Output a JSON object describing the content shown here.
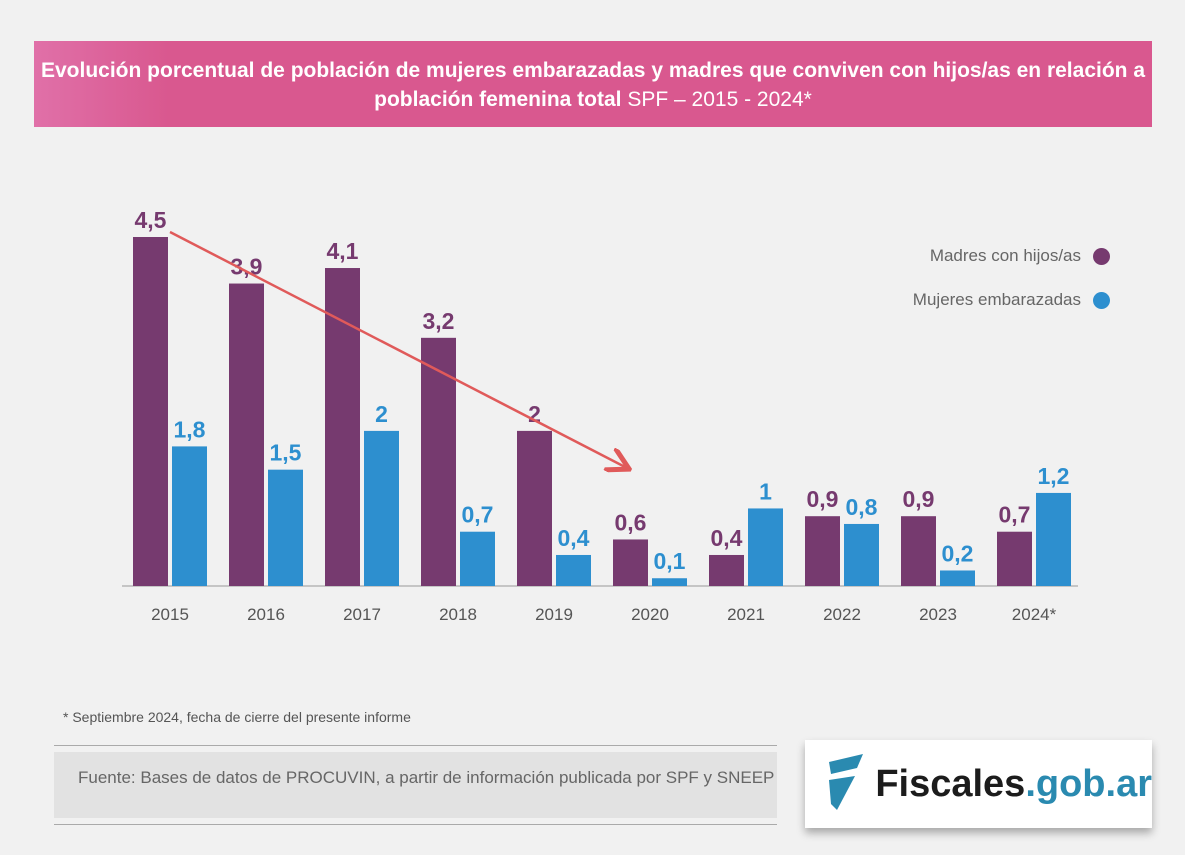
{
  "title": {
    "bold": "Evolución porcentual de población de mujeres embarazadas y madres que conviven con hijos/as en relación a población femenina total",
    "light": "SPF – 2015 - 2024*"
  },
  "chart_data": {
    "type": "bar",
    "categories": [
      "2015",
      "2016",
      "2017",
      "2018",
      "2019",
      "2020",
      "2021",
      "2022",
      "2023",
      "2024*"
    ],
    "series": [
      {
        "name": "Madres con hijos/as",
        "color": "#763a6f",
        "values": [
          4.5,
          3.9,
          4.1,
          3.2,
          2,
          0.6,
          0.4,
          0.9,
          0.9,
          0.7
        ],
        "labels": [
          "4,5",
          "3,9",
          "4,1",
          "3,2",
          "2",
          "0,6",
          "0,4",
          "0,9",
          "0,9",
          "0,7"
        ]
      },
      {
        "name": "Mujeres embarazadas",
        "color": "#2d8fcf",
        "values": [
          1.8,
          1.5,
          2,
          0.7,
          0.4,
          0.1,
          1,
          0.8,
          0.2,
          1.2
        ],
        "labels": [
          "1,8",
          "1,5",
          "2",
          "0,7",
          "0,4",
          "0,1",
          "1",
          "0,8",
          "0,2",
          "1,2"
        ]
      }
    ],
    "annotations": [
      {
        "type": "trend-arrow",
        "color": "#e05a5a",
        "from": "2015",
        "to": "2020"
      }
    ],
    "legend": "right",
    "grid": false,
    "ylim": [
      0,
      4.5
    ]
  },
  "footnote": "* Septiembre 2024, fecha de cierre del presente informe",
  "source": "Fuente: Bases de datos de PROCUVIN, a partir de información publicada por SPF y SNEEP",
  "logo": {
    "main": "Fiscales",
    "domain": ".gob.ar"
  }
}
